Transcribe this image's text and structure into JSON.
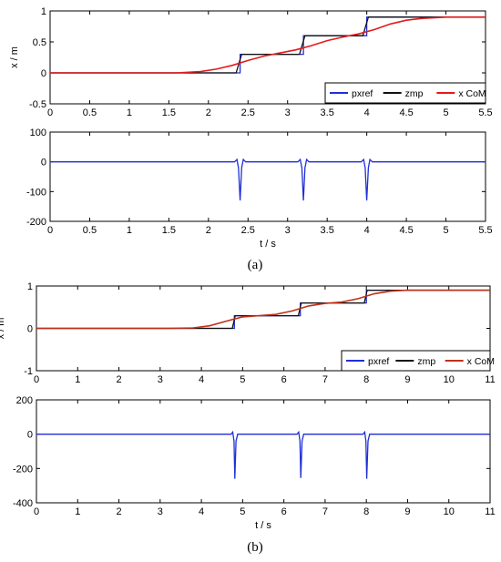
{
  "captions": {
    "a": "(a)",
    "b": "(b)"
  },
  "colors": {
    "pxref": "#1f2fd6",
    "zmp": "#111111",
    "com": "#e01b1b"
  },
  "chart_data": [
    {
      "id": "a1",
      "type": "line",
      "ylabel": "x / m",
      "xlabel": "",
      "xlim": [
        0,
        5.5
      ],
      "ylim": [
        -0.5,
        1
      ],
      "xticks": [
        "0",
        "0.5",
        "1",
        "1.5",
        "2",
        "2.5",
        "3",
        "3.5",
        "4",
        "4.5",
        "5",
        "5.5"
      ],
      "yticks": [
        "-0.5",
        "0",
        "0.5",
        "1"
      ],
      "legend": {
        "placement": "bottom-right",
        "entries": [
          "pxref",
          "zmp",
          "x CoM"
        ]
      },
      "series": [
        {
          "name": "pxref",
          "color": "#1f2fd6",
          "x": [
            0,
            1.45,
            2.4,
            2.4,
            3.2,
            3.2,
            4.0,
            4.0,
            5.5
          ],
          "y": [
            0,
            0,
            0,
            0.3,
            0.3,
            0.6,
            0.6,
            0.9,
            0.9
          ]
        },
        {
          "name": "zmp",
          "color": "#111111",
          "x": [
            0,
            1.45,
            2.35,
            2.42,
            3.15,
            3.22,
            3.95,
            4.02,
            5.5
          ],
          "y": [
            0,
            0,
            0,
            0.3,
            0.3,
            0.6,
            0.6,
            0.9,
            0.9
          ]
        },
        {
          "name": "x CoM",
          "color": "#e01b1b",
          "x": [
            0,
            1.6,
            1.9,
            2.1,
            2.3,
            2.5,
            2.7,
            2.9,
            3.1,
            3.3,
            3.5,
            3.7,
            3.9,
            4.1,
            4.3,
            4.5,
            4.7,
            5.0,
            5.5
          ],
          "y": [
            0,
            0,
            0.02,
            0.06,
            0.12,
            0.2,
            0.27,
            0.32,
            0.37,
            0.44,
            0.52,
            0.58,
            0.63,
            0.7,
            0.79,
            0.85,
            0.88,
            0.9,
            0.9
          ]
        }
      ]
    },
    {
      "id": "a2",
      "type": "line",
      "ylabel": "",
      "xlabel": "t / s",
      "xlim": [
        0,
        5.5
      ],
      "ylim": [
        -200,
        100
      ],
      "xticks": [
        "0",
        "0.5",
        "1",
        "1.5",
        "2",
        "2.5",
        "3",
        "3.5",
        "4",
        "4.5",
        "5",
        "5.5"
      ],
      "yticks": [
        "-200",
        "-100",
        "0",
        "100"
      ],
      "series": [
        {
          "name": "",
          "color": "#1f2fd6",
          "x": [
            0,
            2.33,
            2.36,
            2.38,
            2.4,
            2.42,
            2.44,
            2.47,
            3.13,
            3.16,
            3.18,
            3.2,
            3.22,
            3.24,
            3.27,
            3.93,
            3.96,
            3.98,
            4.0,
            4.02,
            4.04,
            4.07,
            5.5
          ],
          "y": [
            0,
            0,
            8,
            -20,
            -130,
            -20,
            8,
            0,
            0,
            8,
            -20,
            -130,
            -20,
            8,
            0,
            0,
            8,
            -20,
            -130,
            -20,
            8,
            0,
            0
          ]
        }
      ]
    },
    {
      "id": "b1",
      "type": "line",
      "ylabel": "x / m",
      "xlabel": "",
      "xlim": [
        0,
        11
      ],
      "ylim": [
        -1,
        1
      ],
      "xticks": [
        "0",
        "1",
        "2",
        "3",
        "4",
        "5",
        "6",
        "7",
        "8",
        "9",
        "10",
        "11"
      ],
      "yticks": [
        "-1",
        "0",
        "1"
      ],
      "legend": {
        "placement": "bottom-right",
        "entries": [
          "pxref",
          "zmp",
          "x CoM"
        ]
      },
      "series": [
        {
          "name": "pxref",
          "color": "#1f2fd6",
          "x": [
            0,
            3.2,
            4.8,
            4.8,
            6.4,
            6.4,
            8.0,
            8.0,
            11
          ],
          "y": [
            0,
            0,
            0,
            0.3,
            0.3,
            0.6,
            0.6,
            0.9,
            0.9
          ]
        },
        {
          "name": "zmp",
          "color": "#111111",
          "x": [
            0,
            3.2,
            4.75,
            4.82,
            6.35,
            6.42,
            7.95,
            8.02,
            11
          ],
          "y": [
            0,
            0,
            0,
            0.3,
            0.3,
            0.6,
            0.6,
            0.9,
            0.9
          ]
        },
        {
          "name": "x CoM",
          "color": "#c0301a",
          "x": [
            0,
            3.2,
            3.8,
            4.2,
            4.6,
            5.0,
            5.4,
            5.8,
            6.2,
            6.6,
            7.0,
            7.4,
            7.8,
            8.2,
            8.6,
            9.0,
            11
          ],
          "y": [
            0,
            0,
            0.01,
            0.06,
            0.17,
            0.27,
            0.3,
            0.33,
            0.41,
            0.53,
            0.59,
            0.62,
            0.7,
            0.82,
            0.88,
            0.9,
            0.9
          ]
        }
      ]
    },
    {
      "id": "b2",
      "type": "line",
      "ylabel": "",
      "xlabel": "t / s",
      "xlim": [
        0,
        11
      ],
      "ylim": [
        -400,
        200
      ],
      "xticks": [
        "0",
        "1",
        "2",
        "3",
        "4",
        "5",
        "6",
        "7",
        "8",
        "9",
        "10",
        "11"
      ],
      "yticks": [
        "-400",
        "-200",
        "0",
        "200"
      ],
      "series": [
        {
          "name": "",
          "color": "#1f2fd6",
          "x": [
            0,
            4.72,
            4.76,
            4.79,
            4.81,
            4.84,
            4.88,
            6.32,
            6.36,
            6.39,
            6.41,
            6.44,
            6.48,
            7.92,
            7.96,
            7.99,
            8.01,
            8.04,
            8.08,
            11
          ],
          "y": [
            0,
            0,
            12,
            -40,
            -260,
            -40,
            0,
            0,
            12,
            -40,
            -255,
            -40,
            0,
            0,
            12,
            -40,
            -260,
            -40,
            0,
            0
          ]
        }
      ]
    }
  ]
}
